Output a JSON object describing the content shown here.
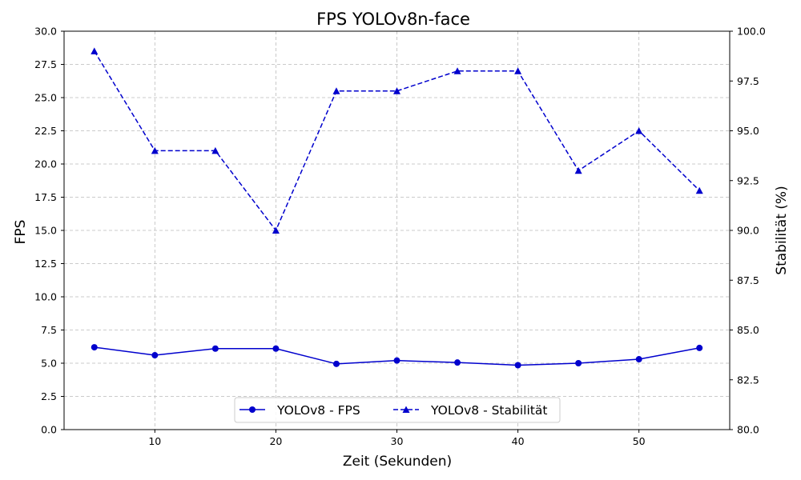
{
  "chart_data": {
    "type": "line",
    "title": "FPS YOLOv8n-face",
    "xlabel": "Zeit (Sekunden)",
    "ylabel": "FPS",
    "y2label": "Stabilität (%)",
    "x": [
      5,
      10,
      15,
      20,
      25,
      30,
      35,
      40,
      45,
      50,
      55
    ],
    "xlim": [
      2.5,
      57.5
    ],
    "xticks": [
      "10",
      "20",
      "30",
      "40",
      "50"
    ],
    "ylim": [
      0,
      30
    ],
    "yticks": [
      "0.0",
      "2.5",
      "5.0",
      "7.5",
      "10.0",
      "12.5",
      "15.0",
      "17.5",
      "20.0",
      "22.5",
      "25.0",
      "27.5",
      "30.0"
    ],
    "y2lim": [
      80,
      100
    ],
    "y2ticks": [
      "80.0",
      "82.5",
      "85.0",
      "87.5",
      "90.0",
      "92.5",
      "95.0",
      "97.5",
      "100.0"
    ],
    "grid": true,
    "legend_position": "bottom-center",
    "series": [
      {
        "name": "YOLOv8 - FPS",
        "axis": "left",
        "style": "solid",
        "marker": "circle",
        "color": "#0000cd",
        "values": [
          6.2,
          5.6,
          6.1,
          6.1,
          4.95,
          5.2,
          5.05,
          4.85,
          5.0,
          5.3,
          6.15
        ]
      },
      {
        "name": "YOLOv8 - Stabilität",
        "axis": "right",
        "style": "dashed",
        "marker": "triangle",
        "color": "#0000cd",
        "values": [
          99,
          94,
          94,
          90,
          97,
          97,
          98,
          98,
          93,
          95,
          92
        ]
      }
    ]
  }
}
